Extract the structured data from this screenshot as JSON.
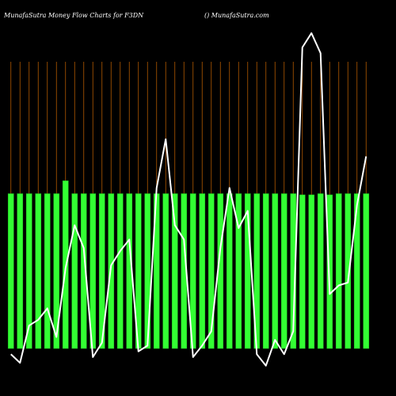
{
  "header": {
    "title": "MunafaSutra  Money Flow  Charts for F3DN",
    "site": "() MunafaSutra.com"
  },
  "colors": {
    "background": "#000000",
    "bar": "#33ff33",
    "bar_edge": "#1fbf1f",
    "grid": "#b35900",
    "line": "#ffffff",
    "text": "#ffffff"
  },
  "chart_data": {
    "type": "bar",
    "title": "MunafaSutra  Money Flow  Charts for F3DN",
    "xlabel": "",
    "ylabel": "",
    "grid": true,
    "categories": [
      "",
      "",
      "",
      "",
      "",
      "",
      "",
      "",
      "",
      "",
      "",
      "",
      "",
      "",
      "",
      "",
      "",
      "",
      "",
      "",
      "",
      "",
      "",
      "",
      "",
      "",
      "",
      "",
      "",
      "",
      "",
      "",
      "",
      "",
      "",
      "",
      "",
      "",
      "",
      ""
    ],
    "bar_labels": [
      "",
      "",
      "",
      "",
      "",
      "",
      "",
      "",
      "",
      "",
      "",
      "",
      "",
      "",
      "",
      "",
      "",
      "",
      "",
      "",
      "",
      "",
      "",
      "",
      "",
      "",
      "",
      "",
      "",
      "",
      "",
      "",
      "",
      "",
      "",
      "",
      "",
      "",
      "",
      ""
    ],
    "bar_ylim": [
      0,
      100
    ],
    "line_ylim": [
      0,
      100
    ],
    "series": [
      {
        "type": "bar",
        "values": [
          54.0,
          54.0,
          54.0,
          54.0,
          54.0,
          54.0,
          58.5,
          54.0,
          54.0,
          54.0,
          54.0,
          54.0,
          54.0,
          54.0,
          54.0,
          54.0,
          54.0,
          54.0,
          54.0,
          54.0,
          54.0,
          54.0,
          54.0,
          54.0,
          54.0,
          54.0,
          54.0,
          54.0,
          54.0,
          54.0,
          54.0,
          54.0,
          53.6,
          53.6,
          54.0,
          53.6,
          54.0,
          54.0,
          54.0,
          54.0
        ]
      },
      {
        "type": "line",
        "values": [
          -2,
          -5,
          8,
          10,
          14,
          4,
          28,
          43,
          35,
          -3,
          2,
          29,
          34,
          38,
          -1,
          1,
          56,
          73,
          43,
          38,
          -3,
          1,
          6,
          35,
          56,
          42,
          48,
          -2,
          -6,
          3,
          -2,
          6,
          105,
          110,
          103,
          19,
          22,
          23,
          50,
          67
        ]
      }
    ]
  }
}
